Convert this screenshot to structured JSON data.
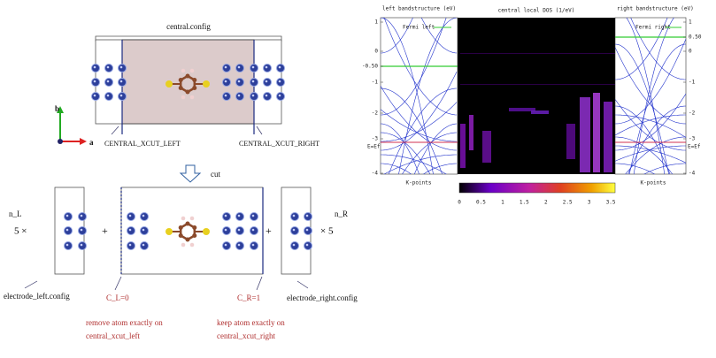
{
  "central_config": {
    "title": "central.config",
    "axis_b": "b",
    "axis_a": "a",
    "xcut_left": "CENTRAL_XCUT_LEFT",
    "xcut_right": "CENTRAL_XCUT_RIGHT"
  },
  "cut": "cut",
  "split": {
    "n_left": "n_L",
    "times_left": "5 ×",
    "plus_1": "+",
    "plus_2": "+",
    "times_right": "× 5",
    "n_right": "n_R",
    "electrode_left": "electrode_left.config",
    "c_left": "C_L=0",
    "c_right": "C_R=1",
    "electrode_right": "electrode_right.config",
    "remove_note": [
      "remove atom exactly on",
      "central_xcut_left"
    ],
    "keep_note": [
      "keep atom exactly on",
      "central_xcut_right"
    ]
  },
  "plots": {
    "left_title": "left bandstructure (eV)",
    "central_title": "central local DOS (1/eV)",
    "right_title": "right bandstructure (eV)",
    "fermi_left": "Fermi left",
    "fermi_right": "Fermi right",
    "left_ticks": [
      "1",
      "0",
      "-0.50",
      "-1",
      "-2",
      "-3",
      "-4"
    ],
    "right_ticks": [
      "1",
      "0.50",
      "0",
      "-1",
      "-2",
      "-3",
      "-4"
    ],
    "ef_left": "E=Ef",
    "ef_right": "E=Ef",
    "xlabel_left": "K-points",
    "xlabel_right": "K-points",
    "colorbar_ticks": [
      "0",
      "0.5",
      "1",
      "1.5",
      "2",
      "2.5",
      "3",
      "3.5"
    ]
  }
}
